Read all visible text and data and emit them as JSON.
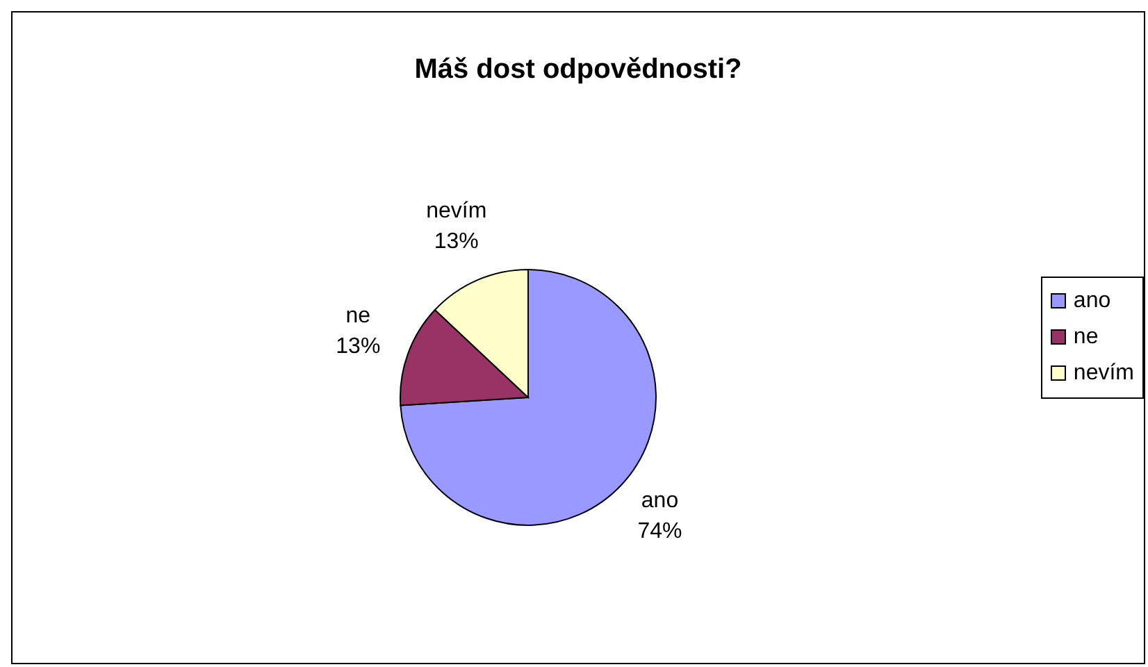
{
  "chart_data": {
    "type": "pie",
    "title": "Máš dost odpovědnosti?",
    "categories": [
      "ano",
      "ne",
      "nevím"
    ],
    "values": [
      74,
      13,
      13
    ],
    "value_labels": [
      "74%",
      "13%",
      "13%"
    ],
    "colors": [
      "#9999ff",
      "#993366",
      "#ffffcc"
    ],
    "legend": "right"
  }
}
